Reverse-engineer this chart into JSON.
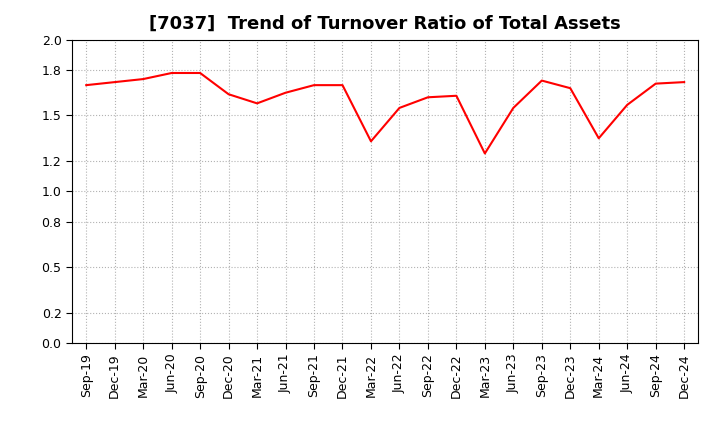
{
  "title": "[7037]  Trend of Turnover Ratio of Total Assets",
  "x_labels": [
    "Sep-19",
    "Dec-19",
    "Mar-20",
    "Jun-20",
    "Sep-20",
    "Dec-20",
    "Mar-21",
    "Jun-21",
    "Sep-21",
    "Dec-21",
    "Mar-22",
    "Jun-22",
    "Sep-22",
    "Dec-22",
    "Mar-23",
    "Jun-23",
    "Sep-23",
    "Dec-23",
    "Mar-24",
    "Jun-24",
    "Sep-24",
    "Dec-24"
  ],
  "values": [
    1.7,
    1.72,
    1.74,
    1.78,
    1.78,
    1.64,
    1.58,
    1.65,
    1.7,
    1.7,
    1.33,
    1.55,
    1.62,
    1.63,
    1.25,
    1.55,
    1.73,
    1.68,
    1.35,
    1.57,
    1.71,
    1.72
  ],
  "line_color": "#ff0000",
  "line_width": 1.5,
  "background_color": "#ffffff",
  "ylim": [
    0.0,
    2.0
  ],
  "yticks": [
    0.0,
    0.2,
    0.5,
    0.8,
    1.0,
    1.2,
    1.5,
    1.8,
    2.0
  ],
  "grid_color": "#aaaaaa",
  "title_fontsize": 13,
  "tick_fontsize": 9
}
